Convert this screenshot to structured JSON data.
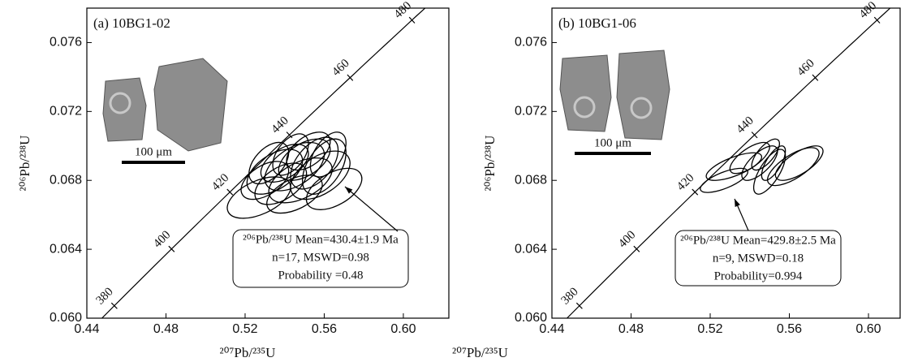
{
  "chart_data": [
    {
      "type": "concordia",
      "panel_label": "(a) 10BG1-02",
      "scale_bar": "100 μm",
      "xlabel": "²⁰⁷Pb/²³⁵U",
      "ylabel": "²⁰⁶Pb/²³⁸U",
      "xlim": [
        0.44,
        0.623
      ],
      "ylim": [
        0.06,
        0.078
      ],
      "xticks": [
        0.44,
        0.48,
        0.52,
        0.56,
        {
          "value": 0.6,
          "label": "0.60"
        }
      ],
      "yticks": [
        {
          "value": 0.06,
          "label": "0.060"
        },
        0.064,
        0.068,
        0.072,
        0.076
      ],
      "concordia_ages": [
        380,
        400,
        420,
        440,
        460,
        480
      ],
      "annotation": [
        "²⁰⁶Pb/²³⁸U Mean=430.4±1.9 Ma",
        "n=17, MSWD=0.98",
        "Probability =0.48"
      ],
      "ellipses": [
        {
          "x": 0.527,
          "y": 0.067,
          "x_err": 0.016,
          "y_err": 0.0012,
          "rho": 0.5
        },
        {
          "x": 0.535,
          "y": 0.0685,
          "x_err": 0.014,
          "y_err": 0.0013,
          "rho": 0.5
        },
        {
          "x": 0.54,
          "y": 0.069,
          "x_err": 0.012,
          "y_err": 0.0011,
          "rho": 0.5
        },
        {
          "x": 0.545,
          "y": 0.0688,
          "x_err": 0.015,
          "y_err": 0.0014,
          "rho": 0.5
        },
        {
          "x": 0.55,
          "y": 0.0692,
          "x_err": 0.013,
          "y_err": 0.0012,
          "rho": 0.5
        },
        {
          "x": 0.555,
          "y": 0.069,
          "x_err": 0.012,
          "y_err": 0.0015,
          "rho": 0.5
        },
        {
          "x": 0.56,
          "y": 0.0688,
          "x_err": 0.011,
          "y_err": 0.0016,
          "rho": 0.5
        },
        {
          "x": 0.565,
          "y": 0.0675,
          "x_err": 0.014,
          "y_err": 0.0012,
          "rho": 0.5
        },
        {
          "x": 0.548,
          "y": 0.068,
          "x_err": 0.016,
          "y_err": 0.0013,
          "rho": 0.5
        },
        {
          "x": 0.538,
          "y": 0.0678,
          "x_err": 0.013,
          "y_err": 0.0012,
          "rho": 0.5
        },
        {
          "x": 0.532,
          "y": 0.069,
          "x_err": 0.01,
          "y_err": 0.0012,
          "rho": 0.5
        },
        {
          "x": 0.552,
          "y": 0.0697,
          "x_err": 0.011,
          "y_err": 0.0011,
          "rho": 0.5
        },
        {
          "x": 0.543,
          "y": 0.0695,
          "x_err": 0.009,
          "y_err": 0.0012,
          "rho": 0.5
        },
        {
          "x": 0.558,
          "y": 0.0683,
          "x_err": 0.015,
          "y_err": 0.0014,
          "rho": 0.5
        },
        {
          "x": 0.53,
          "y": 0.068,
          "x_err": 0.012,
          "y_err": 0.0011,
          "rho": 0.5
        },
        {
          "x": 0.545,
          "y": 0.0672,
          "x_err": 0.014,
          "y_err": 0.0011,
          "rho": 0.5
        },
        {
          "x": 0.562,
          "y": 0.0695,
          "x_err": 0.009,
          "y_err": 0.0013,
          "rho": 0.5
        }
      ]
    },
    {
      "type": "concordia",
      "panel_label": "(b) 10BG1-06",
      "scale_bar": "100 μm",
      "xlabel": "²⁰⁷Pb/²³⁵U",
      "ylabel": "²⁰⁶Pb/²³⁸U",
      "xlim": [
        0.44,
        0.616
      ],
      "ylim": [
        0.06,
        0.078
      ],
      "xticks": [
        0.44,
        0.48,
        0.52,
        0.56,
        {
          "value": 0.6,
          "label": "0.60"
        }
      ],
      "yticks": [
        {
          "value": 0.06,
          "label": "0.060"
        },
        0.064,
        0.068,
        0.072,
        0.076
      ],
      "concordia_ages": [
        380,
        400,
        420,
        440,
        460,
        480
      ],
      "annotation": [
        "²⁰⁶Pb/²³⁸U Mean=429.8±2.5 Ma",
        "n=9, MSWD=0.18",
        "Probability=0.994"
      ],
      "ellipses": [
        {
          "x": 0.527,
          "y": 0.068,
          "x_err": 0.012,
          "y_err": 0.0007,
          "rho": 0.7
        },
        {
          "x": 0.532,
          "y": 0.0688,
          "x_err": 0.014,
          "y_err": 0.0008,
          "rho": 0.7
        },
        {
          "x": 0.54,
          "y": 0.0693,
          "x_err": 0.01,
          "y_err": 0.0009,
          "rho": 0.7
        },
        {
          "x": 0.545,
          "y": 0.069,
          "x_err": 0.009,
          "y_err": 0.001,
          "rho": 0.7
        },
        {
          "x": 0.548,
          "y": 0.0695,
          "x_err": 0.007,
          "y_err": 0.0009,
          "rho": 0.7
        },
        {
          "x": 0.55,
          "y": 0.0685,
          "x_err": 0.008,
          "y_err": 0.0013,
          "rho": 0.7
        },
        {
          "x": 0.552,
          "y": 0.069,
          "x_err": 0.006,
          "y_err": 0.001,
          "rho": 0.7
        },
        {
          "x": 0.562,
          "y": 0.0688,
          "x_err": 0.013,
          "y_err": 0.0011,
          "rho": 0.7
        },
        {
          "x": 0.565,
          "y": 0.069,
          "x_err": 0.012,
          "y_err": 0.001,
          "rho": 0.7
        }
      ]
    }
  ]
}
